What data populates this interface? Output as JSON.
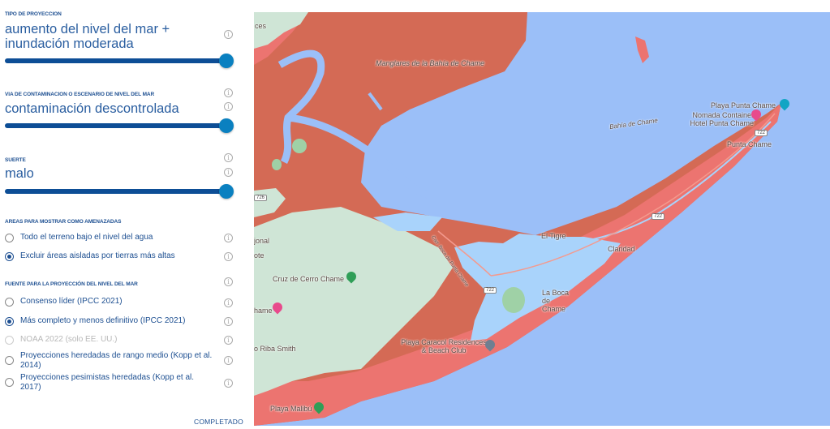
{
  "panel": {
    "projection_type": {
      "label": "TIPO DE PROYECCION",
      "value": "aumento del nivel del mar + inundación moderada",
      "slider_level": 1.0
    },
    "pollution": {
      "label": "VIA DE CONTAMINACION O ESCENARIO DE NIVEL DEL MAR",
      "value": "contaminación descontrolada",
      "slider_level": 1.0
    },
    "luck": {
      "label": "SUERTE",
      "value": "malo",
      "slider_level": 1.0
    },
    "areas": {
      "label": "AREAS PARA MOSTRAR COMO AMENAZADAS",
      "options": [
        {
          "label": "Todo el terreno bajo el nivel del agua",
          "selected": false
        },
        {
          "label": "Excluir áreas aisladas por tierras más altas",
          "selected": true
        }
      ]
    },
    "source": {
      "label": "FUENTE PARA LA PROYECCIÓN DEL NIVEL DEL MAR",
      "options": [
        {
          "label": "Consenso líder (IPCC 2021)",
          "selected": false
        },
        {
          "label": "Más completo y menos definitivo (IPCC 2021)",
          "selected": true
        },
        {
          "label": "NOAA 2022 (solo EE. UU.)",
          "selected": false,
          "disabled": true
        },
        {
          "label": "Proyecciones heredadas de rango medio (Kopp et al. 2014)",
          "selected": false
        },
        {
          "label": "Proyecciones pesimistas heredadas (Kopp et al. 2017)",
          "selected": false
        }
      ]
    },
    "done_label": "COMPLETADO",
    "info_icon": "info-icon"
  },
  "map": {
    "colors": {
      "water": "#9bbff8",
      "threat_dark": "#d46a55",
      "threat_light": "#ec7470",
      "land": "#cfe5d6",
      "lagoon": "#a9d3fb"
    },
    "labels": {
      "ces": "ces",
      "manglares": "Manglares de la Bahía de Chame",
      "bahia": "Bahía de Chame",
      "playa_punta": "Playa Punta Chame",
      "nomada": "Nomada Container Hotel Punta Chame",
      "punta": "Punta Chame",
      "el_tigre": "El Tigre",
      "claridad": "Claridad",
      "cruz": "Cruz de Cerro Chame",
      "jonal": "jonal",
      "ote": "ote",
      "hame": "hame",
      "boca": "La Boca de Chame",
      "caracol": "Playa Caracol Residences & Beach Club",
      "riba": "o Riba Smith",
      "malibu": "Playa Malibú",
      "road": "Carr. Boca de Punta Chame"
    },
    "shields": {
      "r726": "726",
      "r722a": "722",
      "r722b": "722",
      "r722c": "722"
    }
  }
}
